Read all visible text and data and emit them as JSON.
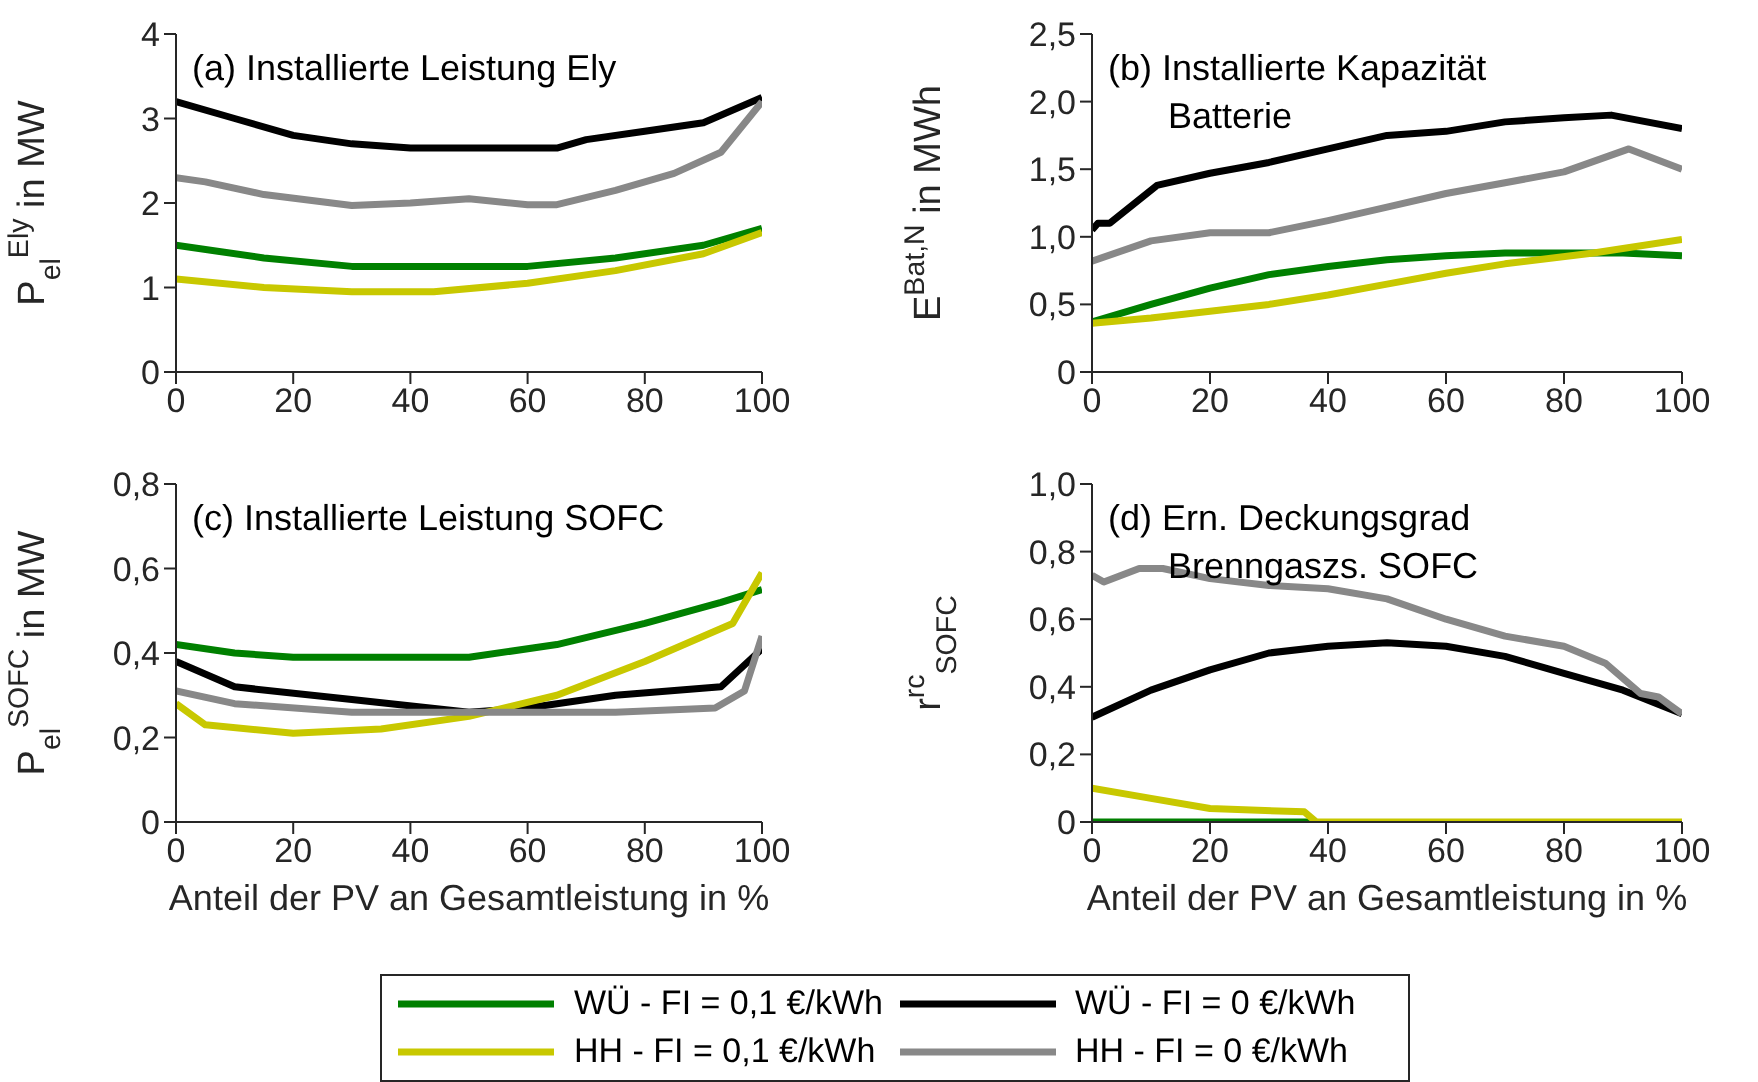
{
  "chart_data": [
    {
      "type": "line",
      "title": "(a) Installierte Leistung Ely",
      "ylabel": "P$_{el}$$^{Ely}$ in MW",
      "xlim": [
        0,
        100
      ],
      "xticks": [
        0,
        20,
        40,
        60,
        80,
        100
      ],
      "ylim": [
        0,
        4
      ],
      "yticks": [
        0,
        1,
        2,
        3,
        4
      ],
      "series": [
        {
          "color": "#008000",
          "x": [
            0,
            15,
            30,
            45,
            60,
            75,
            90,
            100
          ],
          "values": [
            1.5,
            1.35,
            1.25,
            1.25,
            1.25,
            1.35,
            1.5,
            1.7
          ]
        },
        {
          "color": "#000000",
          "x": [
            0,
            10,
            20,
            30,
            40,
            50,
            60,
            65,
            70,
            80,
            90,
            100
          ],
          "values": [
            3.2,
            3.0,
            2.8,
            2.7,
            2.65,
            2.65,
            2.65,
            2.65,
            2.75,
            2.85,
            2.95,
            3.25
          ]
        },
        {
          "color": "#c8c800",
          "x": [
            0,
            15,
            30,
            44,
            60,
            75,
            90,
            100
          ],
          "values": [
            1.1,
            1.0,
            0.95,
            0.95,
            1.05,
            1.2,
            1.4,
            1.65
          ]
        },
        {
          "color": "#888888",
          "x": [
            0,
            5,
            15,
            30,
            40,
            50,
            60,
            65,
            75,
            85,
            93,
            100
          ],
          "values": [
            2.3,
            2.25,
            2.1,
            1.97,
            2.0,
            2.05,
            1.98,
            1.98,
            2.15,
            2.35,
            2.6,
            3.2
          ]
        }
      ]
    },
    {
      "type": "line",
      "title": "(b) Installierte Kapazität\nBatterie",
      "ylabel": "E$^{Bat,N}$ in MWh",
      "xlim": [
        0,
        100
      ],
      "xticks": [
        0,
        20,
        40,
        60,
        80,
        100
      ],
      "ylim": [
        0,
        2.5
      ],
      "yticks": [
        0,
        {
          "value": 0.5,
          "label": "0,5"
        },
        {
          "value": 1,
          "label": "1,0"
        },
        {
          "value": 1.5,
          "label": "1,5"
        },
        {
          "value": 2,
          "label": "2,0"
        },
        {
          "value": 2.5,
          "label": "2,5"
        }
      ],
      "series": [
        {
          "color": "#008000",
          "x": [
            0,
            10,
            20,
            30,
            40,
            50,
            60,
            70,
            80,
            90,
            100
          ],
          "values": [
            0.37,
            0.5,
            0.62,
            0.72,
            0.78,
            0.83,
            0.86,
            0.88,
            0.88,
            0.88,
            0.86
          ]
        },
        {
          "color": "#000000",
          "x": [
            0,
            1,
            3,
            11,
            20,
            30,
            40,
            50,
            60,
            70,
            80,
            88,
            100
          ],
          "values": [
            1.05,
            1.1,
            1.1,
            1.38,
            1.47,
            1.55,
            1.65,
            1.75,
            1.78,
            1.85,
            1.88,
            1.9,
            1.8
          ]
        },
        {
          "color": "#c8c800",
          "x": [
            0,
            10,
            20,
            30,
            40,
            50,
            60,
            70,
            85,
            100
          ],
          "values": [
            0.36,
            0.4,
            0.45,
            0.5,
            0.57,
            0.65,
            0.73,
            0.8,
            0.88,
            0.98
          ]
        },
        {
          "color": "#888888",
          "x": [
            0,
            10,
            20,
            30,
            40,
            50,
            60,
            70,
            80,
            91,
            100
          ],
          "values": [
            0.82,
            0.97,
            1.03,
            1.03,
            1.12,
            1.22,
            1.32,
            1.4,
            1.48,
            1.65,
            1.5
          ]
        }
      ]
    },
    {
      "type": "line",
      "title": "(c) Installierte Leistung SOFC",
      "ylabel": "P$_{el}$$^{SOFC}$ in MW",
      "xlabel": "Anteil der PV an Gesamtleistung in %",
      "xlim": [
        0,
        100
      ],
      "xticks": [
        0,
        20,
        40,
        60,
        80,
        100
      ],
      "ylim": [
        0,
        0.8
      ],
      "yticks": [
        0,
        {
          "value": 0.2,
          "label": "0,2"
        },
        {
          "value": 0.4,
          "label": "0,4"
        },
        {
          "value": 0.6,
          "label": "0,6"
        },
        {
          "value": 0.8,
          "label": "0,8"
        }
      ],
      "series": [
        {
          "color": "#008000",
          "x": [
            0,
            10,
            20,
            50,
            65,
            80,
            93,
            100
          ],
          "values": [
            0.42,
            0.4,
            0.39,
            0.39,
            0.42,
            0.47,
            0.52,
            0.55
          ]
        },
        {
          "color": "#000000",
          "x": [
            0,
            10,
            30,
            50,
            60,
            75,
            93,
            100
          ],
          "values": [
            0.38,
            0.32,
            0.29,
            0.26,
            0.27,
            0.3,
            0.32,
            0.41
          ]
        },
        {
          "color": "#c8c800",
          "x": [
            0,
            5,
            20,
            35,
            50,
            65,
            80,
            95,
            100
          ],
          "values": [
            0.28,
            0.23,
            0.21,
            0.22,
            0.25,
            0.3,
            0.38,
            0.47,
            0.59
          ]
        },
        {
          "color": "#888888",
          "x": [
            0,
            10,
            30,
            50,
            75,
            92,
            97,
            100
          ],
          "values": [
            0.31,
            0.28,
            0.26,
            0.26,
            0.26,
            0.27,
            0.31,
            0.44
          ]
        }
      ]
    },
    {
      "type": "line",
      "title": "(d) Ern. Deckungsgrad\nBrenngaszs. SOFC",
      "ylabel": "r$^{rc}$$_{SOFC}$",
      "xlabel": "Anteil der PV an Gesamtleistung in %",
      "xlim": [
        0,
        100
      ],
      "xticks": [
        0,
        20,
        40,
        60,
        80,
        100
      ],
      "ylim": [
        0,
        1
      ],
      "yticks": [
        0,
        {
          "value": 0.2,
          "label": "0,2"
        },
        {
          "value": 0.4,
          "label": "0,4"
        },
        {
          "value": 0.6,
          "label": "0,6"
        },
        {
          "value": 0.8,
          "label": "0,8"
        },
        {
          "value": 1,
          "label": "1,0"
        }
      ],
      "legend": "bottom",
      "series": [
        {
          "name": "WÜ - FI = 0,1 €/kWh",
          "color": "#008000",
          "x": [
            0,
            37
          ],
          "values": [
            0,
            0
          ]
        },
        {
          "name": "WÜ - FI = 0 €/kWh",
          "color": "#000000",
          "x": [
            0,
            10,
            20,
            30,
            40,
            50,
            60,
            70,
            80,
            90,
            100
          ],
          "values": [
            0.31,
            0.39,
            0.45,
            0.5,
            0.52,
            0.53,
            0.52,
            0.49,
            0.44,
            0.39,
            0.32
          ]
        },
        {
          "name": "HH - FI = 0,1 €/kWh",
          "color": "#c8c800",
          "x": [
            0,
            10,
            20,
            36,
            38,
            100
          ],
          "values": [
            0.1,
            0.07,
            0.04,
            0.03,
            0,
            0
          ]
        },
        {
          "name": "HH - FI = 0 €/kWh",
          "color": "#888888",
          "x": [
            0,
            2,
            8,
            12,
            20,
            30,
            40,
            50,
            60,
            70,
            80,
            87,
            93,
            96,
            100
          ],
          "values": [
            0.73,
            0.71,
            0.75,
            0.75,
            0.72,
            0.7,
            0.69,
            0.66,
            0.6,
            0.55,
            0.52,
            0.47,
            0.38,
            0.37,
            0.32
          ]
        }
      ]
    }
  ]
}
